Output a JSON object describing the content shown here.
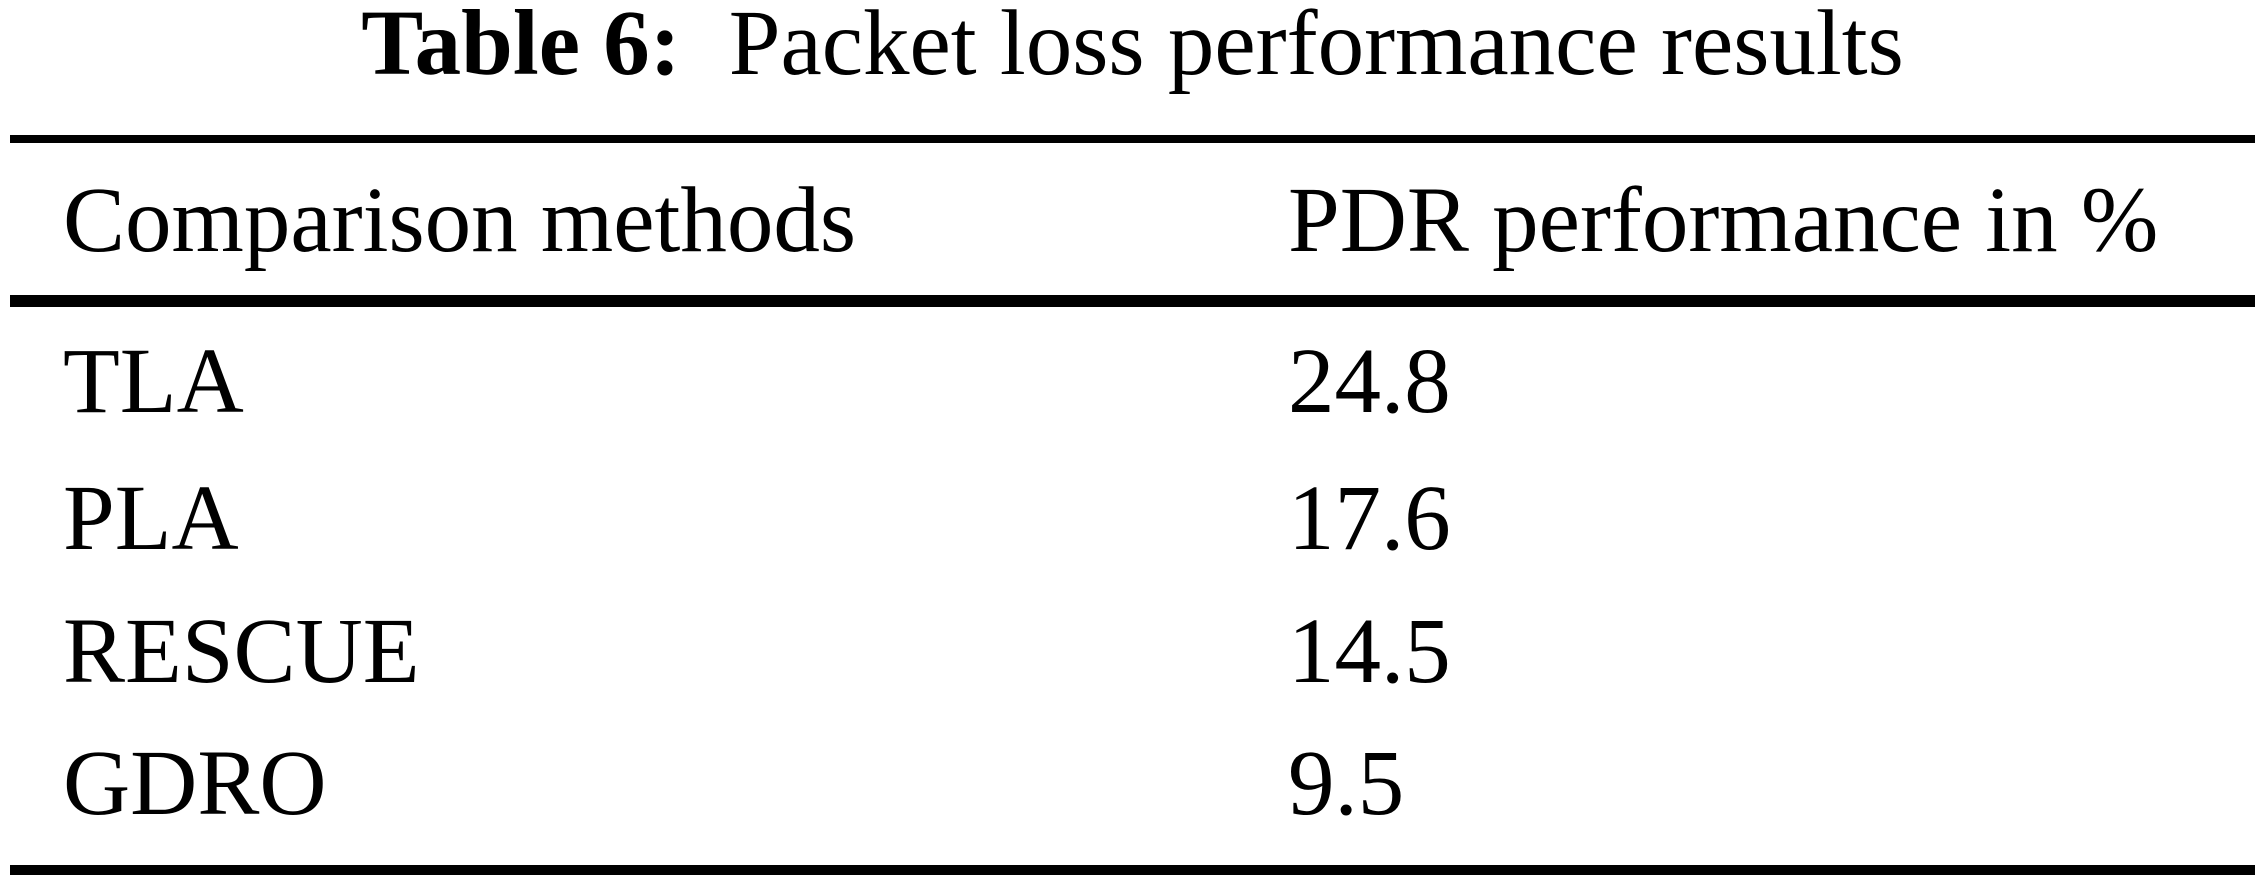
{
  "caption": {
    "label": "Table 6:",
    "text": "Packet loss performance results"
  },
  "columns": [
    "Comparison methods",
    "PDR performance in %"
  ],
  "rows": [
    {
      "method": "TLA",
      "value": "24.8"
    },
    {
      "method": "PLA",
      "value": "17.6"
    },
    {
      "method": "RESCUE",
      "value": "14.5"
    },
    {
      "method": "GDRO",
      "value": "9.5"
    }
  ],
  "colors": {
    "background": "#ffffff",
    "text": "#000000",
    "rule": "#000000"
  }
}
